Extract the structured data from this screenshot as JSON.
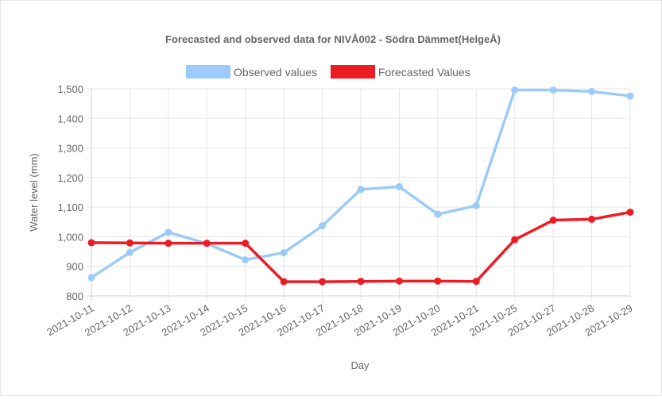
{
  "chart_data": {
    "type": "line",
    "title": "Forecasted and observed data for NIVÅ002 - Södra Dämmet(HelgeÅ)",
    "xlabel": "Day",
    "ylabel": "Water level (mm)",
    "categories": [
      "2021-10-11",
      "2021-10-12",
      "2021-10-13",
      "2021-10-14",
      "2021-10-15",
      "2021-10-16",
      "2021-10-17",
      "2021-10-18",
      "2021-10-19",
      "2021-10-20",
      "2021-10-21",
      "2021-10-25",
      "2021-10-27",
      "2021-10-28",
      "2021-10-29"
    ],
    "yticks": [
      800,
      900,
      1000,
      1100,
      1200,
      1300,
      1400,
      1500
    ],
    "ytick_labels": [
      "800",
      "900",
      "1,000",
      "1,100",
      "1,200",
      "1,300",
      "1,400",
      "1,500"
    ],
    "ylim": [
      800,
      1500
    ],
    "grid": true,
    "legend_position": "top",
    "series": [
      {
        "name": "Observed values",
        "color": "#9ccbfa",
        "values": [
          862,
          947,
          1015,
          977,
          922,
          946,
          1037,
          1160,
          1169,
          1076,
          1105,
          1496,
          1496,
          1491,
          1476
        ]
      },
      {
        "name": "Forecasted Values",
        "color": "#ec1c24",
        "values": [
          980,
          979,
          978,
          978,
          978,
          848,
          848,
          849,
          850,
          850,
          849,
          990,
          1056,
          1059,
          1083
        ]
      }
    ]
  }
}
